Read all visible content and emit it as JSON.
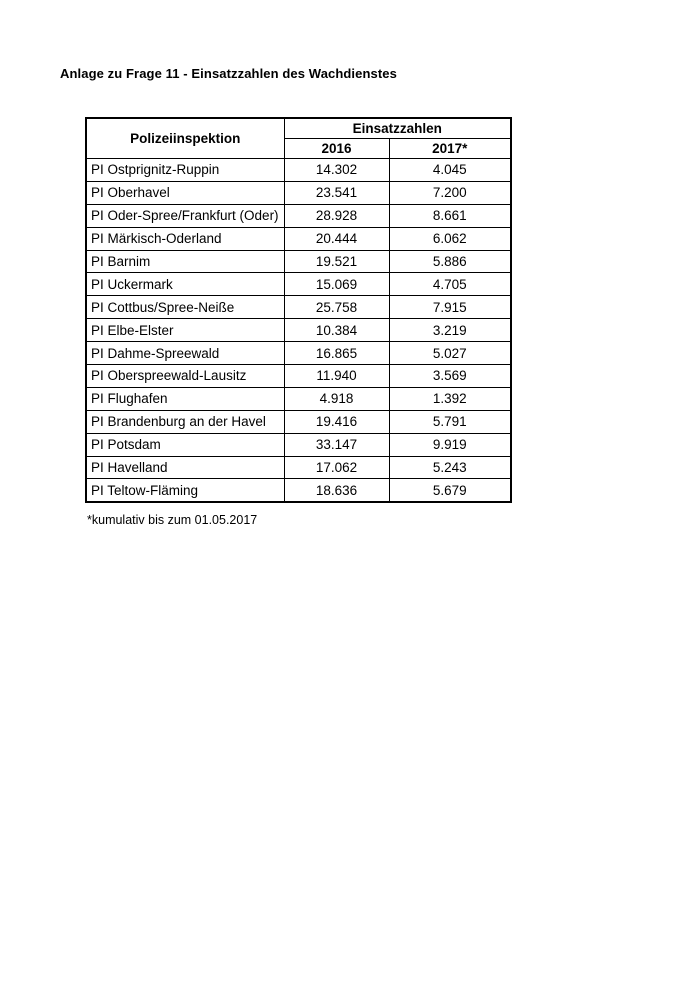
{
  "title": "Anlage zu Frage 11 - Einsatzzahlen des Wachdienstes",
  "table": {
    "col_inspection": "Polizeiinspektion",
    "group_header": "Einsatzzahlen",
    "col_2016": "2016",
    "col_2017": "2017*",
    "rows": [
      {
        "name": "PI Ostprignitz-Ruppin",
        "y2016": "14.302",
        "y2017": "4.045"
      },
      {
        "name": "PI Oberhavel",
        "y2016": "23.541",
        "y2017": "7.200"
      },
      {
        "name": "PI Oder-Spree/Frankfurt (Oder)",
        "y2016": "28.928",
        "y2017": "8.661"
      },
      {
        "name": "PI Märkisch-Oderland",
        "y2016": "20.444",
        "y2017": "6.062"
      },
      {
        "name": "PI Barnim",
        "y2016": "19.521",
        "y2017": "5.886"
      },
      {
        "name": "PI Uckermark",
        "y2016": "15.069",
        "y2017": "4.705"
      },
      {
        "name": "PI Cottbus/Spree-Neiße",
        "y2016": "25.758",
        "y2017": "7.915"
      },
      {
        "name": "PI Elbe-Elster",
        "y2016": "10.384",
        "y2017": "3.219"
      },
      {
        "name": "PI Dahme-Spreewald",
        "y2016": "16.865",
        "y2017": "5.027"
      },
      {
        "name": "PI Oberspreewald-Lausitz",
        "y2016": "11.940",
        "y2017": "3.569"
      },
      {
        "name": "PI Flughafen",
        "y2016": "4.918",
        "y2017": "1.392"
      },
      {
        "name": "PI Brandenburg an der Havel",
        "y2016": "19.416",
        "y2017": "5.791"
      },
      {
        "name": "PI Potsdam",
        "y2016": "33.147",
        "y2017": "9.919"
      },
      {
        "name": "PI Havelland",
        "y2016": "17.062",
        "y2017": "5.243"
      },
      {
        "name": "PI Teltow-Fläming",
        "y2016": "18.636",
        "y2017": "5.679"
      }
    ]
  },
  "footnote": "*kumulativ bis zum 01.05.2017",
  "colors": {
    "page_bg": "#ffffff",
    "text": "#000000",
    "border": "#000000"
  }
}
